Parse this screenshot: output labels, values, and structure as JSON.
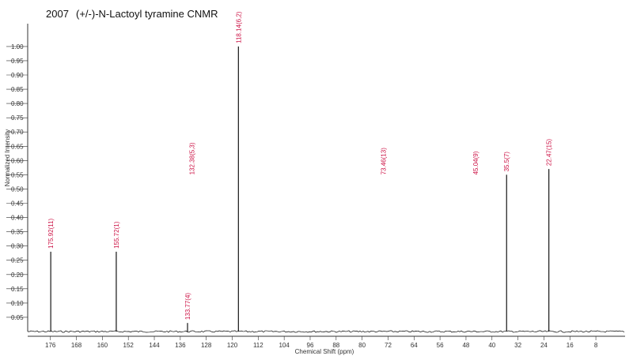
{
  "chart_data": {
    "type": "bar",
    "title_year": "2007",
    "title": "(+/-)-N-Lactoyl tyramine CNMR",
    "xlabel": "Chemical Shift (ppm)",
    "ylabel": "Normalized Intensity",
    "xlim": [
      183,
      -1
    ],
    "ylim": [
      0.0,
      1.08
    ],
    "x_reversed": true,
    "grid": false,
    "colors": {
      "peak": "#000000",
      "label": "#cc1144",
      "baseline": "#000000",
      "axis": "#333333"
    },
    "x_ticks": [
      "176",
      "168",
      "160",
      "152",
      "144",
      "136",
      "128",
      "120",
      "112",
      "104",
      "96",
      "88",
      "80",
      "72",
      "64",
      "56",
      "48",
      "40",
      "32",
      "24",
      "16",
      "8"
    ],
    "x_tick_values": [
      176,
      168,
      160,
      152,
      144,
      136,
      128,
      120,
      112,
      104,
      96,
      88,
      80,
      72,
      64,
      56,
      48,
      40,
      32,
      24,
      16,
      8
    ],
    "y_ticks": [
      "0.05",
      "0.10",
      "0.15",
      "0.20",
      "0.25",
      "0.30",
      "0.35",
      "0.40",
      "0.45",
      "0.50",
      "0.55",
      "0.60",
      "0.65",
      "0.70",
      "0.75",
      "0.80",
      "0.85",
      "0.90",
      "0.95",
      "1.00"
    ],
    "y_tick_values": [
      0.05,
      0.1,
      0.15,
      0.2,
      0.25,
      0.3,
      0.35,
      0.4,
      0.45,
      0.5,
      0.55,
      0.6,
      0.65,
      0.7,
      0.75,
      0.8,
      0.85,
      0.9,
      0.95,
      1.0
    ],
    "peaks": [
      {
        "x": 175.9,
        "y": 0.28,
        "label": "175.92(11)"
      },
      {
        "x": 155.72,
        "y": 0.28,
        "label": "155.72(1)"
      },
      {
        "x": 133.77,
        "y": 0.03,
        "label": "133.77(4)"
      },
      {
        "x": 132.38,
        "y": 0.0,
        "label": "132.38(5,3)"
      },
      {
        "x": 118.1,
        "y": 1.0,
        "label": "118.14(6,2)"
      },
      {
        "x": 73.46,
        "y": 0.0,
        "label": "73.46(13)"
      },
      {
        "x": 45.04,
        "y": 0.0,
        "label": "45.04(9)"
      },
      {
        "x": 35.5,
        "y": 0.55,
        "label": "35.5(7)"
      },
      {
        "x": 22.47,
        "y": 0.57,
        "label": "22.47(15)"
      }
    ]
  }
}
